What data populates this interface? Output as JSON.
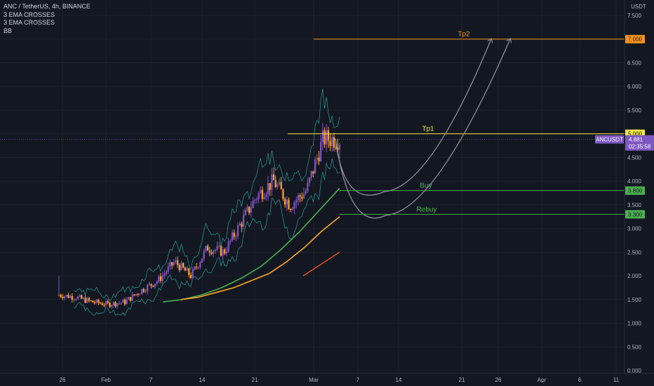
{
  "header": {
    "symbol_line": "ANC / TetherUS, 4h, BINANCE",
    "indicators": [
      "3 EMA CROSSES",
      "3 EMA CROSSES",
      "BB"
    ]
  },
  "price_axis": {
    "currency": "USDT",
    "ticks": [
      "7.500",
      "7.000",
      "6.500",
      "6.000",
      "5.500",
      "5.000",
      "4.500",
      "4.000",
      "3.500",
      "3.000",
      "2.500",
      "2.000",
      "1.500",
      "1.000",
      "0.500",
      "0.000"
    ],
    "tick_values": [
      7.5,
      7.0,
      6.5,
      6.0,
      5.5,
      5.0,
      4.5,
      4.0,
      3.5,
      3.0,
      2.5,
      2.0,
      1.5,
      1.0,
      0.5,
      0.0
    ],
    "range": [
      0,
      7.7
    ]
  },
  "time_axis": {
    "labels": [
      "26",
      "Feb",
      "7",
      "14",
      "21",
      "Mar",
      "7",
      "14",
      "21",
      "26",
      "Apr",
      "6",
      "11"
    ]
  },
  "levels": [
    {
      "name": "Tp2",
      "label": "Tp2",
      "value": 7.0,
      "tag": "7.000",
      "color": "#f7931a"
    },
    {
      "name": "Tp1",
      "label": "Tp1",
      "value": 5.0,
      "tag": "5.000",
      "color": "#f5e642"
    },
    {
      "name": "Buy",
      "label": "Buy",
      "value": 3.8,
      "tag": "3.800",
      "color": "#4caf50"
    },
    {
      "name": "Rebuy",
      "label": "Rebuy",
      "value": 3.3,
      "tag": "3.300",
      "color": "#4caf50"
    }
  ],
  "current_price": {
    "symbol": "ANCUSDT",
    "value": "4.881",
    "numeric": 4.881,
    "countdown": "02:35:58",
    "color": "#7e57c2"
  },
  "colors": {
    "background": "#131722",
    "bull": "#7e57c2",
    "bear": "#ffa726",
    "ema_fast": "#4caf50",
    "ema_slow": "#ffa726",
    "bb": "#26a69a",
    "projection": "#9598a1"
  },
  "chart_data": {
    "type": "candlestick",
    "x_range_index": [
      0,
      330
    ],
    "key_closes": [
      1.6,
      1.55,
      1.45,
      1.4,
      1.45,
      1.7,
      1.9,
      2.3,
      2.0,
      2.6,
      2.5,
      3.1,
      3.7,
      4.0,
      3.5,
      3.8,
      4.9,
      4.88
    ],
    "ema_fast_points": [
      1.45,
      1.5,
      1.6,
      1.75,
      1.95,
      2.2,
      2.55,
      2.95,
      3.4,
      3.85
    ],
    "ema_slow_points": [
      1.5,
      1.55,
      1.65,
      1.75,
      1.9,
      2.05,
      2.3,
      2.6,
      2.95,
      3.25
    ],
    "ema_long_points": [
      2.0,
      2.5
    ]
  }
}
